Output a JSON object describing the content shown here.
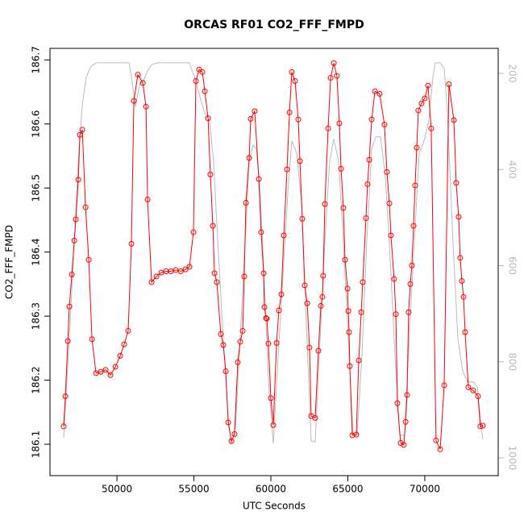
{
  "chart_data": {
    "type": "line",
    "title": "ORCAS RF01 CO2_FFF_FMPD",
    "x_label": "UTC Seconds",
    "y_label": "CO2_FFF_FMPD",
    "xlim": [
      45650,
      74770
    ],
    "xticks": [
      50000,
      55000,
      60000,
      65000,
      70000
    ],
    "ylim": [
      186.051,
      186.718
    ],
    "yticks": [
      186.1,
      186.2,
      186.3,
      186.4,
      186.5,
      186.6,
      186.7
    ],
    "y2lim": [
      1037,
      148
    ],
    "y2ticks": [
      200,
      400,
      600,
      800,
      1000
    ],
    "series": [
      {
        "color": "#ff0000",
        "marker": "circle",
        "x": [
          46540,
          46650,
          46810,
          46910,
          47070,
          47230,
          47330,
          47490,
          47590,
          47750,
          47960,
          48170,
          48380,
          48640,
          48950,
          49270,
          49580,
          49900,
          50210,
          50470,
          50730,
          50940,
          51100,
          51360,
          51680,
          51890,
          51990,
          52250,
          52570,
          52880,
          53190,
          53510,
          53820,
          54140,
          54450,
          54710,
          54970,
          55130,
          55340,
          55550,
          55710,
          55920,
          56070,
          56230,
          56340,
          56490,
          56750,
          56910,
          57070,
          57230,
          57440,
          57640,
          57850,
          58010,
          58170,
          58270,
          58380,
          58590,
          58690,
          58950,
          59220,
          59370,
          59530,
          59580,
          59690,
          59740,
          59840,
          60000,
          60160,
          60370,
          60520,
          60680,
          60840,
          61050,
          61210,
          61360,
          61570,
          61780,
          61890,
          62040,
          62200,
          62360,
          62510,
          62620,
          62880,
          63090,
          63250,
          63350,
          63400,
          63510,
          63720,
          63880,
          64090,
          64290,
          64450,
          64560,
          64710,
          64820,
          64980,
          65030,
          65080,
          65130,
          65290,
          65550,
          65710,
          65870,
          65970,
          66180,
          66280,
          66390,
          66550,
          66760,
          67070,
          67380,
          67540,
          67700,
          67800,
          68010,
          68120,
          68220,
          68430,
          68640,
          68750,
          68850,
          68950,
          69060,
          69160,
          69270,
          69370,
          69480,
          69580,
          69790,
          70000,
          70210,
          70420,
          70730,
          71000,
          71260,
          71570,
          71890,
          72040,
          72200,
          72300,
          72410,
          72520,
          72620,
          72830,
          73140,
          73460,
          73610,
          73770
        ],
        "values": [
          186.128,
          186.175,
          186.261,
          186.315,
          186.365,
          186.418,
          186.451,
          186.513,
          186.583,
          186.591,
          186.47,
          186.388,
          186.264,
          186.211,
          186.213,
          186.216,
          186.208,
          186.221,
          186.238,
          186.256,
          186.277,
          186.413,
          186.636,
          186.677,
          186.664,
          186.627,
          186.482,
          186.353,
          186.362,
          186.368,
          186.37,
          186.37,
          186.372,
          186.37,
          186.373,
          186.377,
          186.431,
          186.667,
          186.685,
          186.681,
          186.651,
          186.609,
          186.521,
          186.441,
          186.367,
          186.353,
          186.272,
          186.255,
          186.214,
          186.134,
          186.105,
          186.116,
          186.228,
          186.26,
          186.277,
          186.362,
          186.477,
          186.547,
          186.608,
          186.62,
          186.514,
          186.431,
          186.367,
          186.314,
          186.297,
          186.296,
          186.257,
          186.172,
          186.13,
          186.258,
          186.309,
          186.334,
          186.426,
          186.529,
          186.618,
          186.681,
          186.667,
          186.607,
          186.542,
          186.452,
          186.348,
          186.32,
          186.251,
          186.144,
          186.141,
          186.246,
          186.316,
          186.33,
          186.363,
          186.475,
          186.593,
          186.672,
          186.695,
          186.675,
          186.601,
          186.53,
          186.469,
          186.388,
          186.343,
          186.308,
          186.275,
          186.222,
          186.114,
          186.115,
          186.231,
          186.306,
          186.353,
          186.453,
          186.506,
          186.544,
          186.607,
          186.651,
          186.647,
          186.599,
          186.525,
          186.476,
          186.426,
          186.358,
          186.303,
          186.164,
          186.102,
          186.099,
          186.135,
          186.177,
          186.306,
          186.35,
          186.379,
          186.441,
          186.504,
          186.563,
          186.621,
          186.632,
          186.64,
          186.66,
          186.593,
          186.106,
          186.092,
          186.192,
          186.662,
          186.606,
          186.508,
          186.455,
          186.391,
          186.355,
          186.33,
          186.275,
          186.189,
          186.184,
          186.175,
          186.128,
          186.129
        ]
      },
      {
        "color": "#bbbbbb",
        "axis": "y2",
        "x": [
          46540,
          46700,
          46960,
          47230,
          47490,
          47750,
          48010,
          48320,
          48690,
          50790,
          50940,
          51200,
          51470,
          51730,
          51940,
          52250,
          52620,
          54710,
          54920,
          55130,
          55390,
          55710,
          56020,
          56280,
          56550,
          56910,
          57230,
          57440,
          57700,
          58010,
          58330,
          58590,
          58850,
          59060,
          59270,
          59530,
          59840,
          60160,
          60420,
          60730,
          61100,
          61360,
          61680,
          61990,
          62300,
          62620,
          62880,
          63200,
          63510,
          63820,
          64090,
          64400,
          64710,
          65030,
          65340,
          65600,
          65920,
          66230,
          66550,
          66810,
          67120,
          67440,
          67750,
          68060,
          68380,
          68690,
          69010,
          69320,
          69640,
          69950,
          70260,
          70530,
          70680,
          71000,
          71260,
          71470,
          71830,
          72150,
          72460,
          72780,
          73140,
          73410,
          73610,
          73770
        ],
        "values": [
          958,
          869,
          718,
          550,
          383,
          265,
          207,
          185,
          178,
          178,
          207,
          270,
          223,
          215,
          198,
          182,
          178,
          178,
          198,
          215,
          249,
          282,
          299,
          383,
          550,
          752,
          919,
          970,
          936,
          752,
          550,
          383,
          349,
          358,
          433,
          601,
          836,
          970,
          819,
          651,
          450,
          341,
          366,
          467,
          718,
          965,
          967,
          752,
          550,
          383,
          336,
          383,
          550,
          752,
          953,
          953,
          785,
          550,
          358,
          332,
          332,
          416,
          584,
          785,
          953,
          953,
          735,
          550,
          366,
          341,
          299,
          207,
          178,
          178,
          190,
          282,
          550,
          752,
          819,
          842,
          842,
          852,
          919,
          961
        ]
      }
    ]
  }
}
